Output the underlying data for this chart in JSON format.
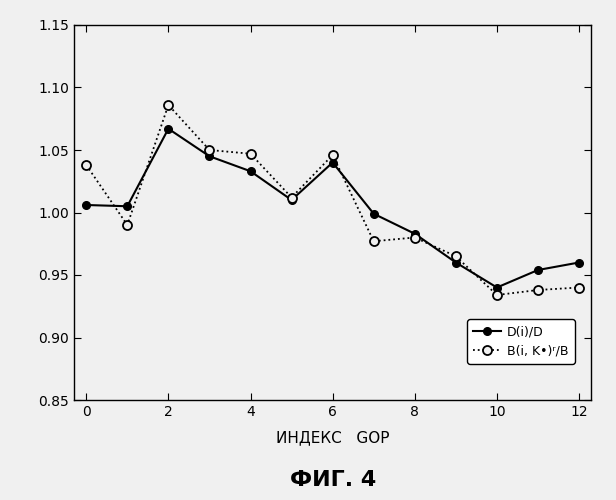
{
  "x": [
    0,
    1,
    2,
    3,
    4,
    5,
    6,
    7,
    8,
    9,
    10,
    11,
    12
  ],
  "y_solid": [
    1.006,
    1.005,
    1.067,
    1.045,
    1.033,
    1.01,
    1.04,
    0.999,
    0.983,
    0.96,
    0.94,
    0.954,
    0.96
  ],
  "y_dotted": [
    1.038,
    0.99,
    1.086,
    1.05,
    1.047,
    1.012,
    1.046,
    0.977,
    0.98,
    0.965,
    0.934,
    0.938,
    0.94
  ],
  "ylim": [
    0.85,
    1.15
  ],
  "xlim": [
    -0.3,
    12.3
  ],
  "yticks": [
    0.85,
    0.9,
    0.95,
    1.0,
    1.05,
    1.1,
    1.15
  ],
  "xticks": [
    0,
    2,
    4,
    6,
    8,
    10,
    12
  ],
  "xlabel": "ИНДЕКС   GOP",
  "fig_label": "ФИГ. 4",
  "legend_solid": "D(i)/D",
  "legend_dotted": "B(i, K•)ʳ/B",
  "line_color": "#000000",
  "bg_color": "#f0f0f0"
}
